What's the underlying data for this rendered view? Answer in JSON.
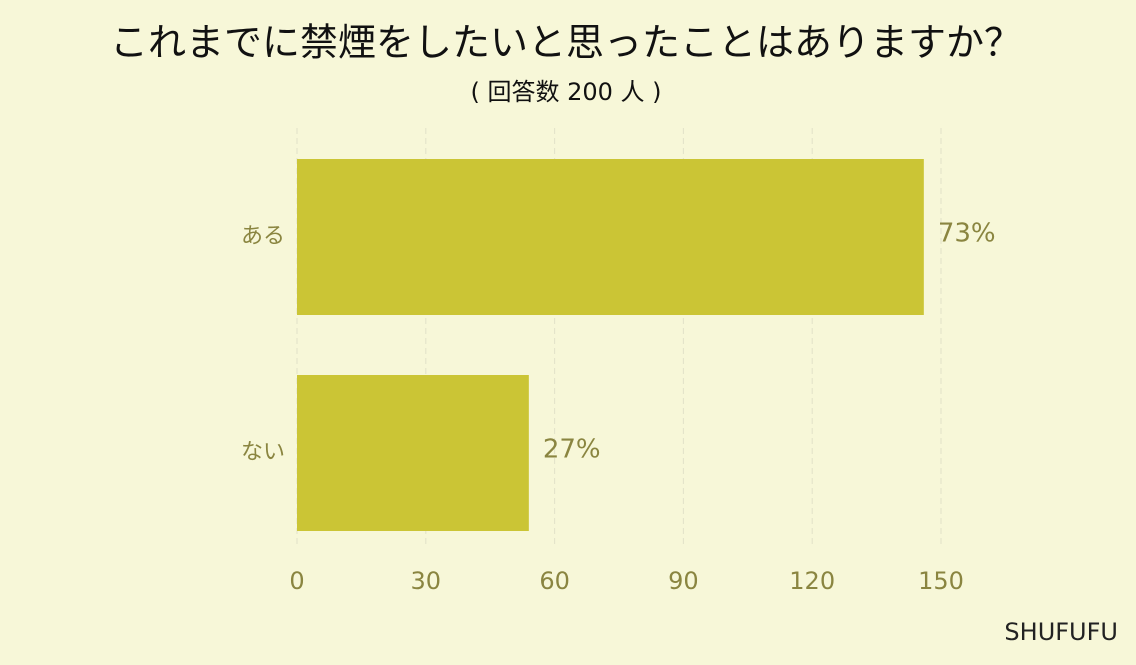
{
  "chart_data": {
    "type": "barh",
    "title": "これまでに禁煙をしたいと思ったことはありますか？",
    "subtitle": "( 回答数 200 人 )",
    "categories": [
      "ある",
      "ない"
    ],
    "values": [
      146,
      54
    ],
    "value_labels": [
      "73%",
      "27%"
    ],
    "color": "#cbc535",
    "xlim": [
      0,
      150
    ],
    "xticks": [
      0,
      30,
      60,
      90,
      120,
      150
    ],
    "grid": true,
    "watermark": "SHUFUFU"
  }
}
